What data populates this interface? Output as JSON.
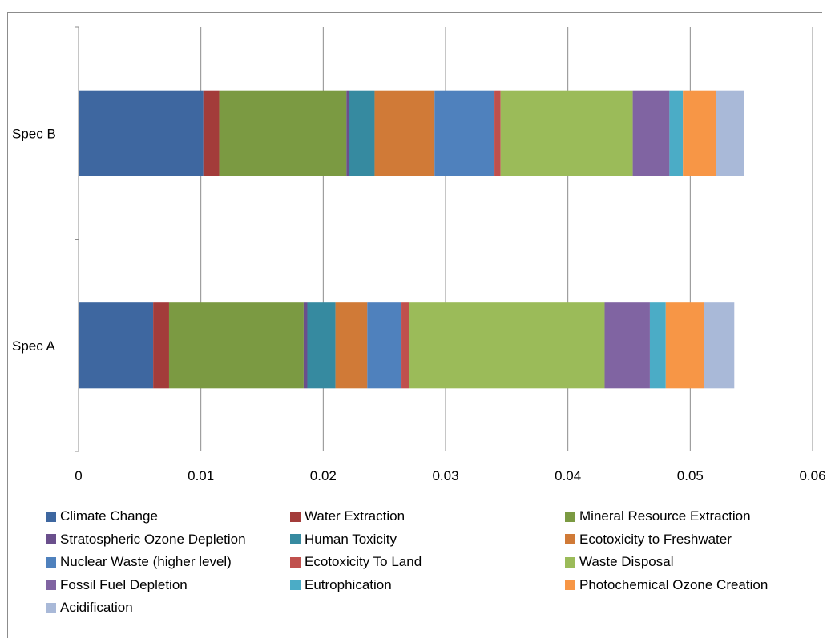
{
  "chart_data": {
    "type": "bar",
    "orientation": "horizontal",
    "stacked": true,
    "title": "",
    "xlabel": "",
    "ylabel": "",
    "xlim": [
      0,
      0.06
    ],
    "x_ticks": [
      "0",
      "0.01",
      "0.02",
      "0.03",
      "0.04",
      "0.05",
      "0.06"
    ],
    "grid": "vertical",
    "legend_position": "bottom",
    "categories": [
      "Spec B",
      "Spec A"
    ],
    "series": [
      {
        "name": "Climate Change",
        "color": "#3e67a0",
        "values": [
          0.0102,
          0.0061
        ]
      },
      {
        "name": "Water Extraction",
        "color": "#a33c3a",
        "values": [
          0.0013,
          0.0013
        ]
      },
      {
        "name": "Mineral Resource Extraction",
        "color": "#7b9a42",
        "values": [
          0.0104,
          0.011
        ]
      },
      {
        "name": "Stratospheric Ozone Depletion",
        "color": "#6a4f8c",
        "values": [
          0.0002,
          0.0003
        ]
      },
      {
        "name": "Human Toxicity",
        "color": "#368aa0",
        "values": [
          0.0021,
          0.0023
        ]
      },
      {
        "name": "Ecotoxicity to Freshwater",
        "color": "#d07a37",
        "values": [
          0.0049,
          0.0026
        ]
      },
      {
        "name": "Nuclear Waste (higher level)",
        "color": "#4f81bd",
        "values": [
          0.0049,
          0.0028
        ]
      },
      {
        "name": "Ecotoxicity To Land",
        "color": "#c0504d",
        "values": [
          0.0005,
          0.0006
        ]
      },
      {
        "name": "Waste Disposal",
        "color": "#9bbb59",
        "values": [
          0.0108,
          0.016
        ]
      },
      {
        "name": "Fossil Fuel Depletion",
        "color": "#8064a2",
        "values": [
          0.003,
          0.0037
        ]
      },
      {
        "name": "Eutrophication",
        "color": "#4bacc6",
        "values": [
          0.0011,
          0.0013
        ]
      },
      {
        "name": "Photochemical Ozone Creation",
        "color": "#f79646",
        "values": [
          0.0027,
          0.0031
        ]
      },
      {
        "name": "Acidification",
        "color": "#a9b9d8",
        "values": [
          0.0023,
          0.0025
        ]
      }
    ]
  }
}
